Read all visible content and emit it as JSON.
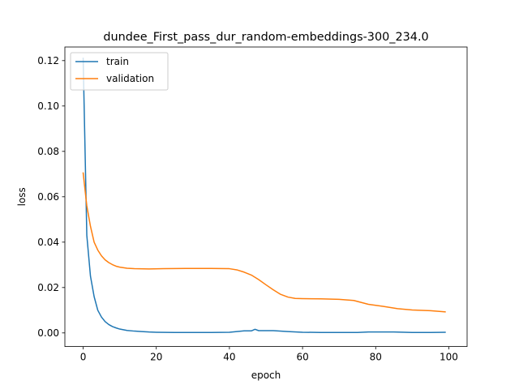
{
  "chart_data": {
    "type": "line",
    "title": "dundee_First_pass_dur_random-embeddings-300_234.0",
    "xlabel": "epoch",
    "ylabel": "loss",
    "xlim": [
      -5,
      105
    ],
    "ylim": [
      -0.006,
      0.126
    ],
    "xticks": [
      0,
      20,
      40,
      60,
      80,
      100
    ],
    "yticks": [
      0.0,
      0.02,
      0.04,
      0.06,
      0.08,
      0.1,
      0.12
    ],
    "xtick_labels": [
      "0",
      "20",
      "40",
      "60",
      "80",
      "100"
    ],
    "ytick_labels": [
      "0.00",
      "0.02",
      "0.04",
      "0.06",
      "0.08",
      "0.10",
      "0.12"
    ],
    "grid": false,
    "legend_position": "upper left",
    "series": [
      {
        "name": "train",
        "color": "#1f77b4",
        "x": [
          0,
          1,
          2,
          3,
          4,
          5,
          6,
          7,
          8,
          9,
          10,
          12,
          14,
          16,
          18,
          20,
          25,
          30,
          35,
          40,
          42,
          44,
          46,
          47,
          48,
          50,
          52,
          56,
          60,
          65,
          70,
          75,
          78,
          82,
          85,
          90,
          95,
          99
        ],
        "y": [
          0.121,
          0.043,
          0.025,
          0.016,
          0.01,
          0.007,
          0.005,
          0.0037,
          0.0028,
          0.0022,
          0.0017,
          0.0011,
          0.0008,
          0.0006,
          0.0004,
          0.0003,
          0.0002,
          0.0002,
          0.0002,
          0.0003,
          0.0006,
          0.0009,
          0.0009,
          0.0016,
          0.001,
          0.001,
          0.001,
          0.0006,
          0.0003,
          0.0002,
          0.0002,
          0.0002,
          0.0004,
          0.0004,
          0.0004,
          0.0002,
          0.0002,
          0.0003
        ]
      },
      {
        "name": "validation",
        "color": "#ff7f0e",
        "x": [
          0,
          1,
          2,
          3,
          4,
          5,
          6,
          7,
          8,
          9,
          10,
          12,
          14,
          18,
          22,
          28,
          35,
          40,
          42,
          44,
          46,
          48,
          50,
          52,
          54,
          56,
          58,
          60,
          65,
          70,
          74,
          78,
          82,
          86,
          90,
          95,
          99
        ],
        "y": [
          0.0705,
          0.056,
          0.047,
          0.04,
          0.0365,
          0.034,
          0.0322,
          0.031,
          0.0301,
          0.0294,
          0.029,
          0.0285,
          0.0283,
          0.0282,
          0.0283,
          0.0284,
          0.0284,
          0.0283,
          0.0278,
          0.0268,
          0.0255,
          0.0235,
          0.0212,
          0.019,
          0.017,
          0.0158,
          0.0152,
          0.0151,
          0.015,
          0.0148,
          0.0143,
          0.0126,
          0.0117,
          0.0107,
          0.0101,
          0.0098,
          0.0093
        ]
      }
    ]
  }
}
